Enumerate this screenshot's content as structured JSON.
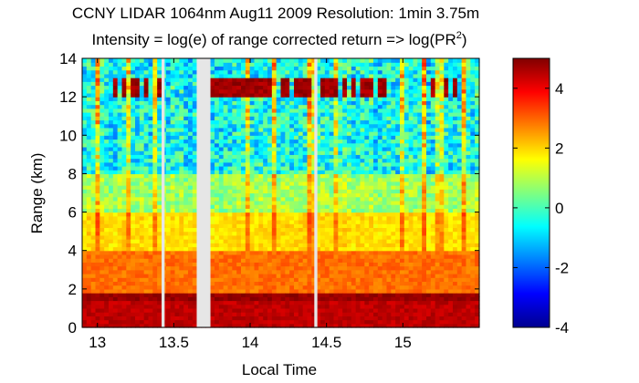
{
  "chart_data": {
    "type": "heatmap",
    "title": "CCNY LIDAR 1064nm Aug11 2009 Resolution: 1min 3.75m",
    "subtitle_prefix": "Intensity = log(e) of range corrected return => log(PR",
    "subtitle_superscript": "2",
    "subtitle_suffix": ")",
    "xlabel": "Local Time",
    "ylabel": "Range (km)",
    "xlim": [
      12.9,
      15.5
    ],
    "ylim": [
      0,
      14
    ],
    "xticks": [
      13,
      13.5,
      14,
      14.5,
      15
    ],
    "xtick_labels": [
      "13",
      "13.5",
      "14",
      "14.5",
      "15"
    ],
    "yticks": [
      0,
      2,
      4,
      6,
      8,
      10,
      12,
      14
    ],
    "ytick_labels": [
      "0",
      "2",
      "4",
      "6",
      "8",
      "10",
      "12",
      "14"
    ],
    "colorbar": {
      "range": [
        -4,
        5
      ],
      "ticks": [
        -4,
        -2,
        0,
        2,
        4
      ],
      "tick_labels": [
        "-4",
        "-2",
        "0",
        "2",
        "4"
      ],
      "colormap": "jet"
    },
    "features": {
      "boundary_layer_top_km": 1.5,
      "aerosol_layer_top_km": 4.0,
      "cloud_layer_base_km": 12.0,
      "cloud_layer_top_km": 13.0,
      "data_gaps_local_time": [
        [
          13.42,
          13.44
        ],
        [
          13.65,
          13.74
        ],
        [
          14.42,
          14.44
        ]
      ]
    }
  }
}
